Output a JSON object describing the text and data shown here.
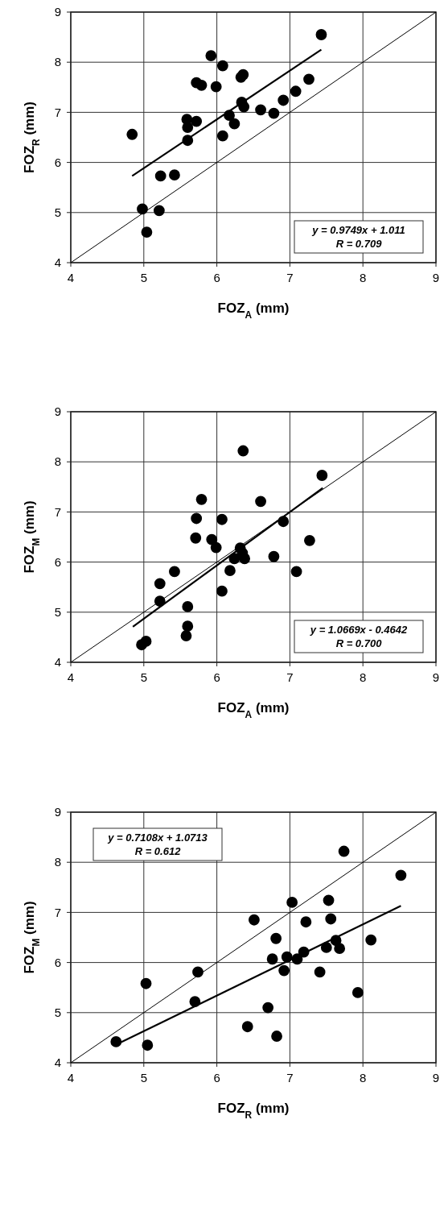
{
  "chart_data": [
    {
      "type": "scatter",
      "xlabel": "FOZ$_{A}$ (mm)",
      "ylabel": "FOZ$_{R}$ (mm)",
      "xlim": [
        4,
        9
      ],
      "ylim": [
        4,
        9
      ],
      "xticks": [
        4,
        5,
        6,
        7,
        8,
        9
      ],
      "yticks": [
        4,
        5,
        6,
        7,
        8,
        9
      ],
      "grid": true,
      "marker": "circle",
      "annotations": [
        "y = 0.9749x + 1.011",
        "R = 0.709"
      ],
      "series": [
        {
          "color": "#000000",
          "x": [
            7.43,
            5.92,
            6.08,
            6.33,
            6.36,
            5.72,
            5.79,
            5.99,
            7.26,
            7.08,
            6.91,
            6.34,
            6.37,
            6.6,
            6.78,
            6.17,
            6.24,
            5.59,
            5.72,
            5.6,
            5.6,
            6.08,
            4.84,
            5.23,
            5.42,
            4.98,
            5.21,
            5.04
          ],
          "values": [
            8.55,
            8.13,
            7.93,
            7.7,
            7.75,
            7.59,
            7.54,
            7.51,
            7.66,
            7.42,
            7.24,
            7.2,
            7.11,
            7.05,
            6.98,
            6.94,
            6.77,
            6.86,
            6.82,
            6.7,
            6.44,
            6.53,
            6.56,
            5.73,
            5.75,
            5.07,
            5.04,
            4.61
          ]
        },
        {
          "type": "line",
          "marker": "none",
          "color": "#000000",
          "x": [
            4,
            9
          ],
          "values": [
            4,
            9
          ]
        },
        {
          "type": "line",
          "marker": "none",
          "color": "#000000",
          "x": [
            4.84,
            7.43
          ],
          "values": [
            5.73,
            8.25
          ]
        }
      ]
    },
    {
      "type": "scatter",
      "xlabel": "FOZ$_{A}$ (mm)",
      "ylabel": "FOZ$_{M}$ (mm)",
      "xlim": [
        4,
        9
      ],
      "ylim": [
        4,
        9
      ],
      "xticks": [
        4,
        5,
        6,
        7,
        8,
        9
      ],
      "yticks": [
        4,
        5,
        6,
        7,
        8,
        9
      ],
      "grid": true,
      "marker": "circle",
      "annotations": [
        "y = 1.0669x - 0.4642",
        "R = 0.700"
      ],
      "series": [
        {
          "color": "#000000",
          "x": [
            6.36,
            7.44,
            5.79,
            6.6,
            5.72,
            6.07,
            6.91,
            5.71,
            5.93,
            5.99,
            7.27,
            6.32,
            6.35,
            6.24,
            6.38,
            6.78,
            7.09,
            6.18,
            5.42,
            5.22,
            6.07,
            5.22,
            5.6,
            5.6,
            5.58,
            5.03,
            4.97
          ],
          "values": [
            8.22,
            7.73,
            7.25,
            7.21,
            6.87,
            6.85,
            6.81,
            6.48,
            6.45,
            6.29,
            6.43,
            6.28,
            6.18,
            6.07,
            6.07,
            6.11,
            5.81,
            5.83,
            5.81,
            5.57,
            5.42,
            5.22,
            5.11,
            4.72,
            4.53,
            4.42,
            4.35
          ]
        },
        {
          "type": "line",
          "marker": "none",
          "color": "#000000",
          "x": [
            4,
            9
          ],
          "values": [
            4,
            9
          ]
        },
        {
          "type": "line",
          "marker": "none",
          "color": "#000000",
          "x": [
            4.85,
            7.45
          ],
          "values": [
            4.71,
            7.48
          ]
        }
      ]
    },
    {
      "type": "scatter",
      "xlabel": "FOZ$_{R}$ (mm)",
      "ylabel": "FOZ$_{M}$ (mm)",
      "xlim": [
        4,
        9
      ],
      "ylim": [
        4,
        9
      ],
      "xticks": [
        4,
        5,
        6,
        7,
        8,
        9
      ],
      "yticks": [
        4,
        5,
        6,
        7,
        8,
        9
      ],
      "grid": true,
      "marker": "circle",
      "annotations": [
        "y = 0.7108x + 1.0713",
        "R = 0.612"
      ],
      "series": [
        {
          "color": "#000000",
          "x": [
            7.74,
            8.52,
            7.03,
            7.53,
            6.51,
            7.22,
            7.56,
            6.81,
            8.11,
            7.63,
            7.5,
            7.68,
            7.19,
            6.96,
            6.76,
            7.1,
            6.92,
            7.41,
            5.74,
            5.03,
            7.93,
            5.7,
            6.7,
            6.42,
            6.82,
            4.62,
            5.05
          ],
          "values": [
            8.22,
            7.74,
            7.2,
            7.24,
            6.85,
            6.81,
            6.87,
            6.48,
            6.45,
            6.44,
            6.3,
            6.28,
            6.21,
            6.11,
            6.07,
            6.07,
            5.84,
            5.81,
            5.81,
            5.58,
            5.4,
            5.22,
            5.1,
            4.72,
            4.53,
            4.42,
            4.35
          ]
        },
        {
          "type": "line",
          "marker": "none",
          "color": "#000000",
          "x": [
            4,
            9
          ],
          "values": [
            4,
            9
          ]
        },
        {
          "type": "line",
          "marker": "none",
          "color": "#000000",
          "x": [
            4.62,
            8.52
          ],
          "values": [
            4.36,
            7.13
          ]
        }
      ]
    }
  ]
}
